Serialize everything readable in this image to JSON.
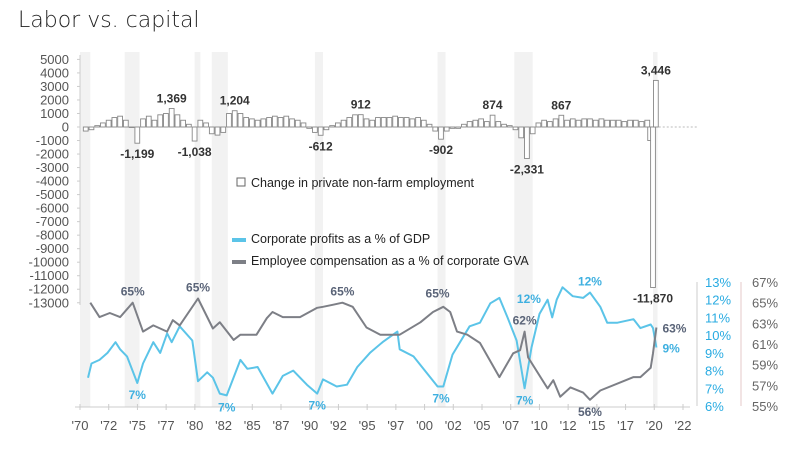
{
  "chart_data": [
    {
      "type": "bar",
      "title": "Labor vs. capital",
      "legend": "Change in private non-farm employment",
      "yticks": [
        5000,
        4000,
        3000,
        2000,
        1000,
        0,
        -1000,
        -2000,
        -3000,
        -4000,
        -5000,
        -6000,
        -7000,
        -8000,
        -9000,
        -10000,
        -11000,
        -12000,
        -13000
      ],
      "ylim": [
        -13000,
        5000
      ],
      "xtick_labels": [
        "'70",
        "'72",
        "'75",
        "'77",
        "'80",
        "'82",
        "'85",
        "'87",
        "'90",
        "'92",
        "'95",
        "'97",
        "'00",
        "'02",
        "'05",
        "'07",
        "'10",
        "'12",
        "'15",
        "'17",
        "'20",
        "'22"
      ],
      "xlim": [
        1970,
        2022
      ],
      "recessions": [
        [
          1970.0,
          1970.9
        ],
        [
          1973.9,
          1975.2
        ],
        [
          1980.0,
          1980.5
        ],
        [
          1981.5,
          1982.9
        ],
        [
          1990.5,
          1991.2
        ],
        [
          2001.2,
          2001.9
        ],
        [
          2007.9,
          2009.5
        ],
        [
          2020.0,
          2020.4
        ]
      ],
      "bars": [
        [
          1970.5,
          -300
        ],
        [
          1971,
          -200
        ],
        [
          1971.5,
          100
        ],
        [
          1972,
          300
        ],
        [
          1972.5,
          500
        ],
        [
          1973,
          700
        ],
        [
          1973.5,
          800
        ],
        [
          1974,
          500
        ],
        [
          1974.5,
          0
        ],
        [
          1975,
          -1199
        ],
        [
          1975.5,
          600
        ],
        [
          1976,
          800
        ],
        [
          1976.5,
          500
        ],
        [
          1977,
          900
        ],
        [
          1977.5,
          1000
        ],
        [
          1978,
          1369
        ],
        [
          1978.5,
          900
        ],
        [
          1979,
          500
        ],
        [
          1979.5,
          200
        ],
        [
          1980,
          -1038
        ],
        [
          1980.5,
          500
        ],
        [
          1981,
          300
        ],
        [
          1981.5,
          -500
        ],
        [
          1982,
          -600
        ],
        [
          1982.5,
          -400
        ],
        [
          1983,
          1000
        ],
        [
          1983.5,
          1204
        ],
        [
          1984,
          1000
        ],
        [
          1984.5,
          700
        ],
        [
          1985,
          600
        ],
        [
          1985.5,
          500
        ],
        [
          1986,
          600
        ],
        [
          1986.5,
          700
        ],
        [
          1987,
          800
        ],
        [
          1987.5,
          700
        ],
        [
          1988,
          800
        ],
        [
          1988.5,
          600
        ],
        [
          1989,
          500
        ],
        [
          1989.5,
          300
        ],
        [
          1990,
          -100
        ],
        [
          1990.5,
          -400
        ],
        [
          1991,
          -612
        ],
        [
          1991.5,
          -200
        ],
        [
          1992,
          100
        ],
        [
          1992.5,
          300
        ],
        [
          1993,
          500
        ],
        [
          1993.5,
          700
        ],
        [
          1994,
          900
        ],
        [
          1994.5,
          912
        ],
        [
          1995,
          600
        ],
        [
          1995.5,
          500
        ],
        [
          1996,
          700
        ],
        [
          1996.5,
          700
        ],
        [
          1997,
          700
        ],
        [
          1997.5,
          800
        ],
        [
          1998,
          700
        ],
        [
          1998.5,
          700
        ],
        [
          1999,
          600
        ],
        [
          1999.5,
          700
        ],
        [
          2000,
          500
        ],
        [
          2000.5,
          200
        ],
        [
          2001,
          -300
        ],
        [
          2001.5,
          -902
        ],
        [
          2002,
          -300
        ],
        [
          2002.5,
          -100
        ],
        [
          2003,
          -100
        ],
        [
          2003.5,
          200
        ],
        [
          2004,
          400
        ],
        [
          2004.5,
          500
        ],
        [
          2005,
          600
        ],
        [
          2005.5,
          400
        ],
        [
          2006,
          874
        ],
        [
          2006.5,
          400
        ],
        [
          2007,
          200
        ],
        [
          2007.5,
          100
        ],
        [
          2008,
          -200
        ],
        [
          2008.5,
          -800
        ],
        [
          2009,
          -2331
        ],
        [
          2009.5,
          -500
        ],
        [
          2010,
          300
        ],
        [
          2010.5,
          500
        ],
        [
          2011,
          400
        ],
        [
          2011.5,
          600
        ],
        [
          2012,
          867
        ],
        [
          2012.5,
          500
        ],
        [
          2013,
          600
        ],
        [
          2013.5,
          500
        ],
        [
          2014,
          600
        ],
        [
          2014.5,
          600
        ],
        [
          2015,
          500
        ],
        [
          2015.5,
          600
        ],
        [
          2016,
          500
        ],
        [
          2016.5,
          500
        ],
        [
          2017,
          500
        ],
        [
          2017.5,
          400
        ],
        [
          2018,
          500
        ],
        [
          2018.5,
          500
        ],
        [
          2019,
          400
        ],
        [
          2019.5,
          500
        ],
        [
          2019.75,
          -1000
        ],
        [
          2020,
          -11870
        ],
        [
          2020.25,
          3446
        ]
      ],
      "data_labels": [
        {
          "text": "-1,199",
          "year": 1975,
          "value": -1199
        },
        {
          "text": "1,369",
          "year": 1978,
          "value": 1369
        },
        {
          "text": "-1,038",
          "year": 1980,
          "value": -1038
        },
        {
          "text": "1,204",
          "year": 1983.5,
          "value": 1204
        },
        {
          "text": "-612",
          "year": 1991,
          "value": -612
        },
        {
          "text": "912",
          "year": 1994.5,
          "value": 912
        },
        {
          "text": "-902",
          "year": 2001.5,
          "value": -902
        },
        {
          "text": "874",
          "year": 2006,
          "value": 874
        },
        {
          "text": "-2,331",
          "year": 2009,
          "value": -2331
        },
        {
          "text": "867",
          "year": 2012,
          "value": 867
        },
        {
          "text": "3,446",
          "year": 2020.25,
          "value": 3446
        },
        {
          "text": "-11,870",
          "year": 2020,
          "value": -11870
        }
      ]
    },
    {
      "type": "line",
      "legend_position": "center",
      "series": [
        {
          "name": "Corporate profits as a % of GDP",
          "axis": "right-inner",
          "color": "#5bc4e8",
          "ylim": [
            6,
            13
          ],
          "yticks": [
            "13%",
            "12%",
            "11%",
            "10%",
            "9%",
            "8%",
            "7%",
            "6%"
          ],
          "points": [
            [
              1970.7,
              7.6
            ],
            [
              1971.0,
              8.4
            ],
            [
              1971.7,
              8.6
            ],
            [
              1972.4,
              9.0
            ],
            [
              1973.1,
              9.6
            ],
            [
              1973.5,
              9.2
            ],
            [
              1974.1,
              8.8
            ],
            [
              1975.0,
              7.3
            ],
            [
              1975.5,
              8.4
            ],
            [
              1976.4,
              9.6
            ],
            [
              1977.0,
              9.0
            ],
            [
              1977.6,
              10.1
            ],
            [
              1978.0,
              9.6
            ],
            [
              1978.7,
              10.5
            ],
            [
              1979.8,
              9.7
            ],
            [
              1980.3,
              7.4
            ],
            [
              1981.1,
              7.9
            ],
            [
              1981.6,
              7.6
            ],
            [
              1982.2,
              6.7
            ],
            [
              1982.8,
              6.6
            ],
            [
              1984.0,
              8.6
            ],
            [
              1984.6,
              8.1
            ],
            [
              1985.5,
              8.2
            ],
            [
              1986.8,
              6.7
            ],
            [
              1987.7,
              7.7
            ],
            [
              1988.6,
              8.0
            ],
            [
              1989.8,
              7.2
            ],
            [
              1990.7,
              6.7
            ],
            [
              1991.2,
              7.5
            ],
            [
              1992.4,
              7.1
            ],
            [
              1993.3,
              7.2
            ],
            [
              1994.2,
              8.2
            ],
            [
              1995.3,
              9.0
            ],
            [
              1996.4,
              9.6
            ],
            [
              1997.7,
              10.2
            ],
            [
              1997.9,
              9.2
            ],
            [
              1999.1,
              8.8
            ],
            [
              2001.2,
              7.1
            ],
            [
              2001.7,
              7.1
            ],
            [
              2002.5,
              8.9
            ],
            [
              2004.0,
              10.5
            ],
            [
              2004.9,
              10.7
            ],
            [
              2005.8,
              11.8
            ],
            [
              2006.6,
              12.1
            ],
            [
              2007.3,
              11.0
            ],
            [
              2008.1,
              9.7
            ],
            [
              2008.8,
              7.0
            ],
            [
              2009.4,
              9.3
            ],
            [
              2010.1,
              11.2
            ],
            [
              2010.8,
              12.0
            ],
            [
              2011.2,
              11.0
            ],
            [
              2011.6,
              12.0
            ],
            [
              2012.1,
              12.7
            ],
            [
              2013.0,
              12.2
            ],
            [
              2013.9,
              12.1
            ],
            [
              2014.5,
              12.4
            ],
            [
              2015.4,
              11.6
            ],
            [
              2016.0,
              10.7
            ],
            [
              2016.9,
              10.7
            ],
            [
              2018.3,
              10.9
            ],
            [
              2018.9,
              10.4
            ],
            [
              2019.8,
              10.6
            ],
            [
              2020.0,
              10.4
            ],
            [
              2020.3,
              9.3
            ]
          ]
        },
        {
          "name": "Employee compensation as a % of corporate GVA",
          "axis": "right-outer",
          "color": "#7d7f86",
          "ylim": [
            55,
            67
          ],
          "yticks": [
            "67%",
            "65%",
            "63%",
            "61%",
            "59%",
            "57%",
            "55%"
          ],
          "points": [
            [
              1970.9,
              65.0
            ],
            [
              1971.7,
              63.6
            ],
            [
              1972.6,
              64.0
            ],
            [
              1973.5,
              63.6
            ],
            [
              1974.6,
              65.0
            ],
            [
              1975.5,
              62.2
            ],
            [
              1976.4,
              62.8
            ],
            [
              1977.6,
              62.2
            ],
            [
              1978.1,
              63.3
            ],
            [
              1978.7,
              62.8
            ],
            [
              1980.3,
              65.4
            ],
            [
              1981.6,
              62.5
            ],
            [
              1982.2,
              63.1
            ],
            [
              1983.4,
              61.4
            ],
            [
              1984.0,
              61.9
            ],
            [
              1985.4,
              61.9
            ],
            [
              1986.3,
              63.5
            ],
            [
              1986.8,
              64.1
            ],
            [
              1987.7,
              63.6
            ],
            [
              1989.2,
              63.6
            ],
            [
              1990.7,
              64.5
            ],
            [
              1991.2,
              64.6
            ],
            [
              1992.1,
              64.8
            ],
            [
              1992.9,
              65.0
            ],
            [
              1993.8,
              64.6
            ],
            [
              1995.0,
              62.6
            ],
            [
              1996.2,
              61.9
            ],
            [
              1997.7,
              61.9
            ],
            [
              1997.9,
              61.9
            ],
            [
              1999.7,
              63.1
            ],
            [
              2000.8,
              64.1
            ],
            [
              2001.7,
              64.6
            ],
            [
              2002.3,
              64.1
            ],
            [
              2002.9,
              62.2
            ],
            [
              2003.8,
              61.9
            ],
            [
              2004.9,
              61.1
            ],
            [
              2006.6,
              57.8
            ],
            [
              2007.8,
              60.1
            ],
            [
              2008.4,
              60.4
            ],
            [
              2008.8,
              62.2
            ],
            [
              2009.1,
              59.7
            ],
            [
              2010.8,
              56.7
            ],
            [
              2011.3,
              57.5
            ],
            [
              2011.9,
              55.9
            ],
            [
              2012.8,
              56.8
            ],
            [
              2013.9,
              56.3
            ],
            [
              2014.5,
              55.6
            ],
            [
              2015.4,
              56.5
            ],
            [
              2018.3,
              57.8
            ],
            [
              2018.9,
              57.8
            ],
            [
              2019.8,
              58.7
            ],
            [
              2020.0,
              60.1
            ],
            [
              2020.3,
              62.6
            ]
          ]
        }
      ],
      "data_labels": [
        {
          "text": "65%",
          "series": 1,
          "year": 1974.6,
          "value": 65.0,
          "pos": "above"
        },
        {
          "text": "65%",
          "series": 1,
          "year": 1980.3,
          "value": 65.4,
          "pos": "above"
        },
        {
          "text": "65%",
          "series": 1,
          "year": 1992.9,
          "value": 65.0,
          "pos": "above"
        },
        {
          "text": "65%",
          "series": 1,
          "year": 2001.2,
          "value": 64.8,
          "pos": "above"
        },
        {
          "text": "62%",
          "series": 1,
          "year": 2008.8,
          "value": 62.2,
          "pos": "above"
        },
        {
          "text": "56%",
          "series": 1,
          "year": 2014.5,
          "value": 55.6,
          "pos": "below"
        },
        {
          "text": "63%",
          "series": 1,
          "year": 2020.3,
          "value": 62.6,
          "pos": "right"
        },
        {
          "text": "7%",
          "series": 0,
          "year": 1975.0,
          "value": 7.3,
          "pos": "below"
        },
        {
          "text": "7%",
          "series": 0,
          "year": 1982.8,
          "value": 6.6,
          "pos": "below"
        },
        {
          "text": "7%",
          "series": 0,
          "year": 1990.7,
          "value": 6.7,
          "pos": "below"
        },
        {
          "text": "7%",
          "series": 0,
          "year": 2001.5,
          "value": 7.1,
          "pos": "below"
        },
        {
          "text": "12%",
          "series": 0,
          "year": 2007.6,
          "value": 12.1,
          "pos": "right"
        },
        {
          "text": "7%",
          "series": 0,
          "year": 2008.8,
          "value": 7.0,
          "pos": "below"
        },
        {
          "text": "12%",
          "series": 0,
          "year": 2014.5,
          "value": 12.4,
          "pos": "above"
        },
        {
          "text": "9%",
          "series": 0,
          "year": 2020.3,
          "value": 9.3,
          "pos": "right"
        }
      ]
    }
  ]
}
